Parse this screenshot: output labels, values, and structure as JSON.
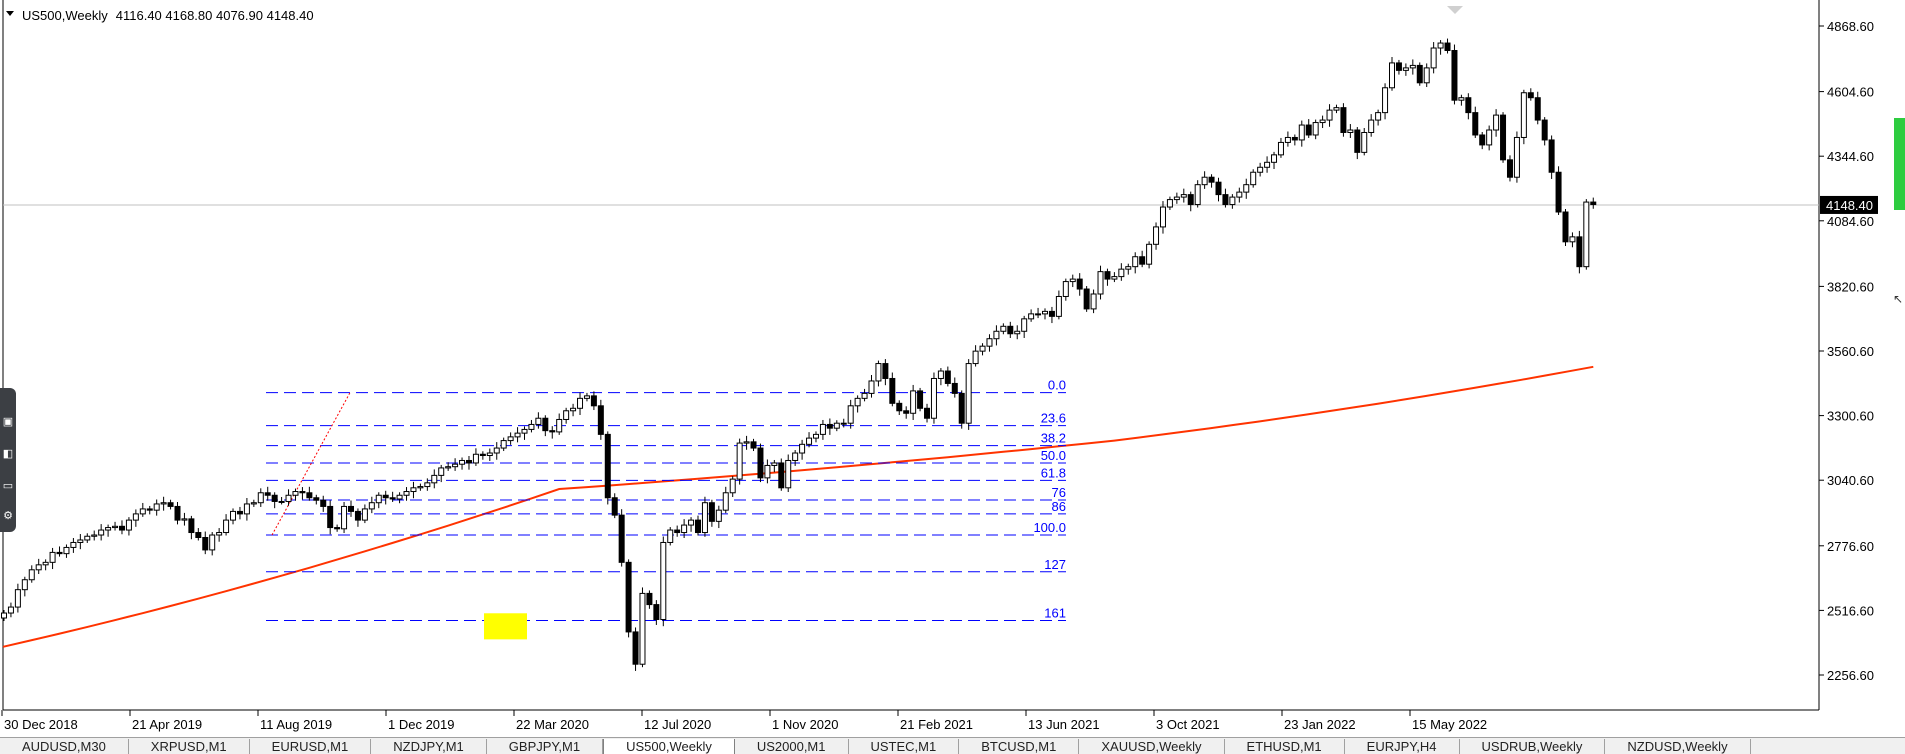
{
  "header": {
    "symbol_timeframe": "US500,Weekly",
    "ohlc": "4116.40 4168.80 4076.90 4148.40"
  },
  "current_price_label": "4148.40",
  "y_axis_labels": [
    "4868.60",
    "4604.60",
    "4344.60",
    "4084.60",
    "3820.60",
    "3560.60",
    "3300.60",
    "3040.60",
    "2776.60",
    "2516.60",
    "2256.60"
  ],
  "x_axis_labels": [
    "30 Dec 2018",
    "21 Apr 2019",
    "11 Aug 2019",
    "1 Dec 2019",
    "22 Mar 2020",
    "12 Jul 2020",
    "1 Nov 2020",
    "21 Feb 2021",
    "13 Jun 2021",
    "3 Oct 2021",
    "23 Jan 2022",
    "15 May 2022"
  ],
  "fib_labels": [
    "0.0",
    "23.6",
    "38.2",
    "50.0",
    "61.8",
    "76",
    "86",
    "100.0",
    "127",
    "161"
  ],
  "tabs": [
    "AUDUSD,M30",
    "XRPUSD,M1",
    "EURUSD,M1",
    "NZDJPY,M1",
    "GBPJPY,M1",
    "US500,Weekly",
    "US2000,M1",
    "USTEC,M1",
    "BTCUSD,M1",
    "XAUUSD,Weekly",
    "ETHUSD,M1",
    "EURJPY,H4",
    "USDRUB,Weekly",
    "NZDUSD,Weekly"
  ],
  "active_tab": "US500,Weekly",
  "toolbar_icons": [
    "camera-icon",
    "media-icon",
    "screen-icon",
    "gear-icon"
  ],
  "colors": {
    "ma_line": "#ff3300",
    "fib_line": "#0000ff",
    "highlight": "#ffff00",
    "candle_bull": "#ffffff",
    "candle_bear": "#000000"
  },
  "chart_data": {
    "type": "candlestick",
    "symbol": "US500",
    "timeframe": "Weekly",
    "last": {
      "open": 4116.4,
      "high": 4168.8,
      "low": 4076.9,
      "close": 4148.4
    },
    "ylim": [
      2150,
      4960
    ],
    "y_ticks": [
      4868.6,
      4604.6,
      4344.6,
      4084.6,
      3820.6,
      3560.6,
      3300.6,
      3040.6,
      2776.6,
      2516.6,
      2256.6
    ],
    "x_ticks": [
      "30 Dec 2018",
      "21 Apr 2019",
      "11 Aug 2019",
      "1 Dec 2019",
      "22 Mar 2020",
      "12 Jul 2020",
      "1 Nov 2020",
      "21 Feb 2021",
      "13 Jun 2021",
      "3 Oct 2021",
      "23 Jan 2022",
      "15 May 2022"
    ],
    "series": [
      {
        "type": "candlestick",
        "close": [
          2506,
          2530,
          2600,
          2640,
          2680,
          2700,
          2710,
          2750,
          2745,
          2770,
          2790,
          2800,
          2815,
          2820,
          2840,
          2850,
          2855,
          2840,
          2880,
          2905,
          2925,
          2920,
          2945,
          2950,
          2935,
          2880,
          2885,
          2830,
          2810,
          2760,
          2820,
          2830,
          2880,
          2915,
          2905,
          2945,
          2950,
          2990,
          2980,
          2955,
          2955,
          2980,
          2995,
          2990,
          2970,
          2960,
          2935,
          2850,
          2845,
          2935,
          2915,
          2880,
          2925,
          2950,
          2980,
          2970,
          2965,
          2980,
          2995,
          3010,
          3015,
          3030,
          3060,
          3090,
          3095,
          3105,
          3120,
          3110,
          3145,
          3140,
          3150,
          3170,
          3200,
          3215,
          3230,
          3245,
          3265,
          3290,
          3240,
          3235,
          3285,
          3320,
          3330,
          3370,
          3380,
          3340,
          3225,
          2970,
          2900,
          2710,
          2430,
          2300,
          2585,
          2540,
          2480,
          2790,
          2840,
          2830,
          2860,
          2880,
          2830,
          2950,
          2875,
          2920,
          2990,
          3045,
          3190,
          3195,
          3170,
          3050,
          3100,
          3110,
          3010,
          3120,
          3150,
          3185,
          3210,
          3225,
          3265,
          3250,
          3270,
          3270,
          3340,
          3370,
          3390,
          3440,
          3510,
          3450,
          3350,
          3320,
          3310,
          3400,
          3330,
          3290,
          3450,
          3480,
          3430,
          3390,
          3270,
          3510,
          3560,
          3580,
          3610,
          3640,
          3660,
          3630,
          3640,
          3690,
          3710,
          3710,
          3720,
          3700,
          3780,
          3840,
          3850,
          3810,
          3730,
          3790,
          3880,
          3850,
          3860,
          3890,
          3900,
          3940,
          3910,
          3990,
          4060,
          4140,
          4170,
          4180,
          4190,
          4150,
          4230,
          4260,
          4240,
          4190,
          4150,
          4180,
          4200,
          4230,
          4280,
          4300,
          4320,
          4350,
          4400,
          4420,
          4410,
          4470,
          4430,
          4480,
          4490,
          4530,
          4540,
          4440,
          4450,
          4360,
          4440,
          4490,
          4520,
          4620,
          4720,
          4690,
          4700,
          4710,
          4640,
          4700,
          4780,
          4800,
          4770,
          4570,
          4580,
          4520,
          4430,
          4390,
          4450,
          4510,
          4330,
          4260,
          4420,
          4600,
          4580,
          4490,
          4410,
          4280,
          4120,
          4000,
          4020,
          3900,
          4160,
          4150
        ]
      },
      {
        "type": "line",
        "name": "",
        "values": [
          2370,
          3005,
          3200,
          3497
        ]
      }
    ],
    "fibonacci": {
      "levels": [
        0.0,
        23.6,
        38.2,
        50.0,
        61.8,
        76,
        86,
        100.0,
        127,
        161
      ],
      "prices": [
        3393,
        3260,
        3180,
        3110,
        3040,
        2961,
        2905,
        2820,
        2672,
        2476
      ]
    }
  }
}
